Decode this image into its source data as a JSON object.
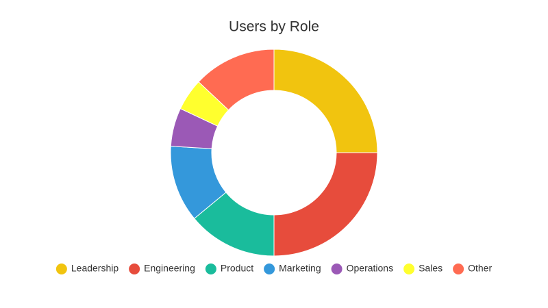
{
  "chart_data": {
    "type": "donut",
    "title": "Users by Role",
    "categories": [
      "Leadership",
      "Engineering",
      "Product",
      "Marketing",
      "Operations",
      "Sales",
      "Other"
    ],
    "values": [
      25,
      25,
      14,
      12,
      6,
      5,
      13
    ],
    "colors": [
      "#f1c40f",
      "#e74c3c",
      "#1abc9c",
      "#3498db",
      "#9b59b6",
      "#ffff2e",
      "#ff6b52"
    ],
    "legend": "bottom"
  }
}
